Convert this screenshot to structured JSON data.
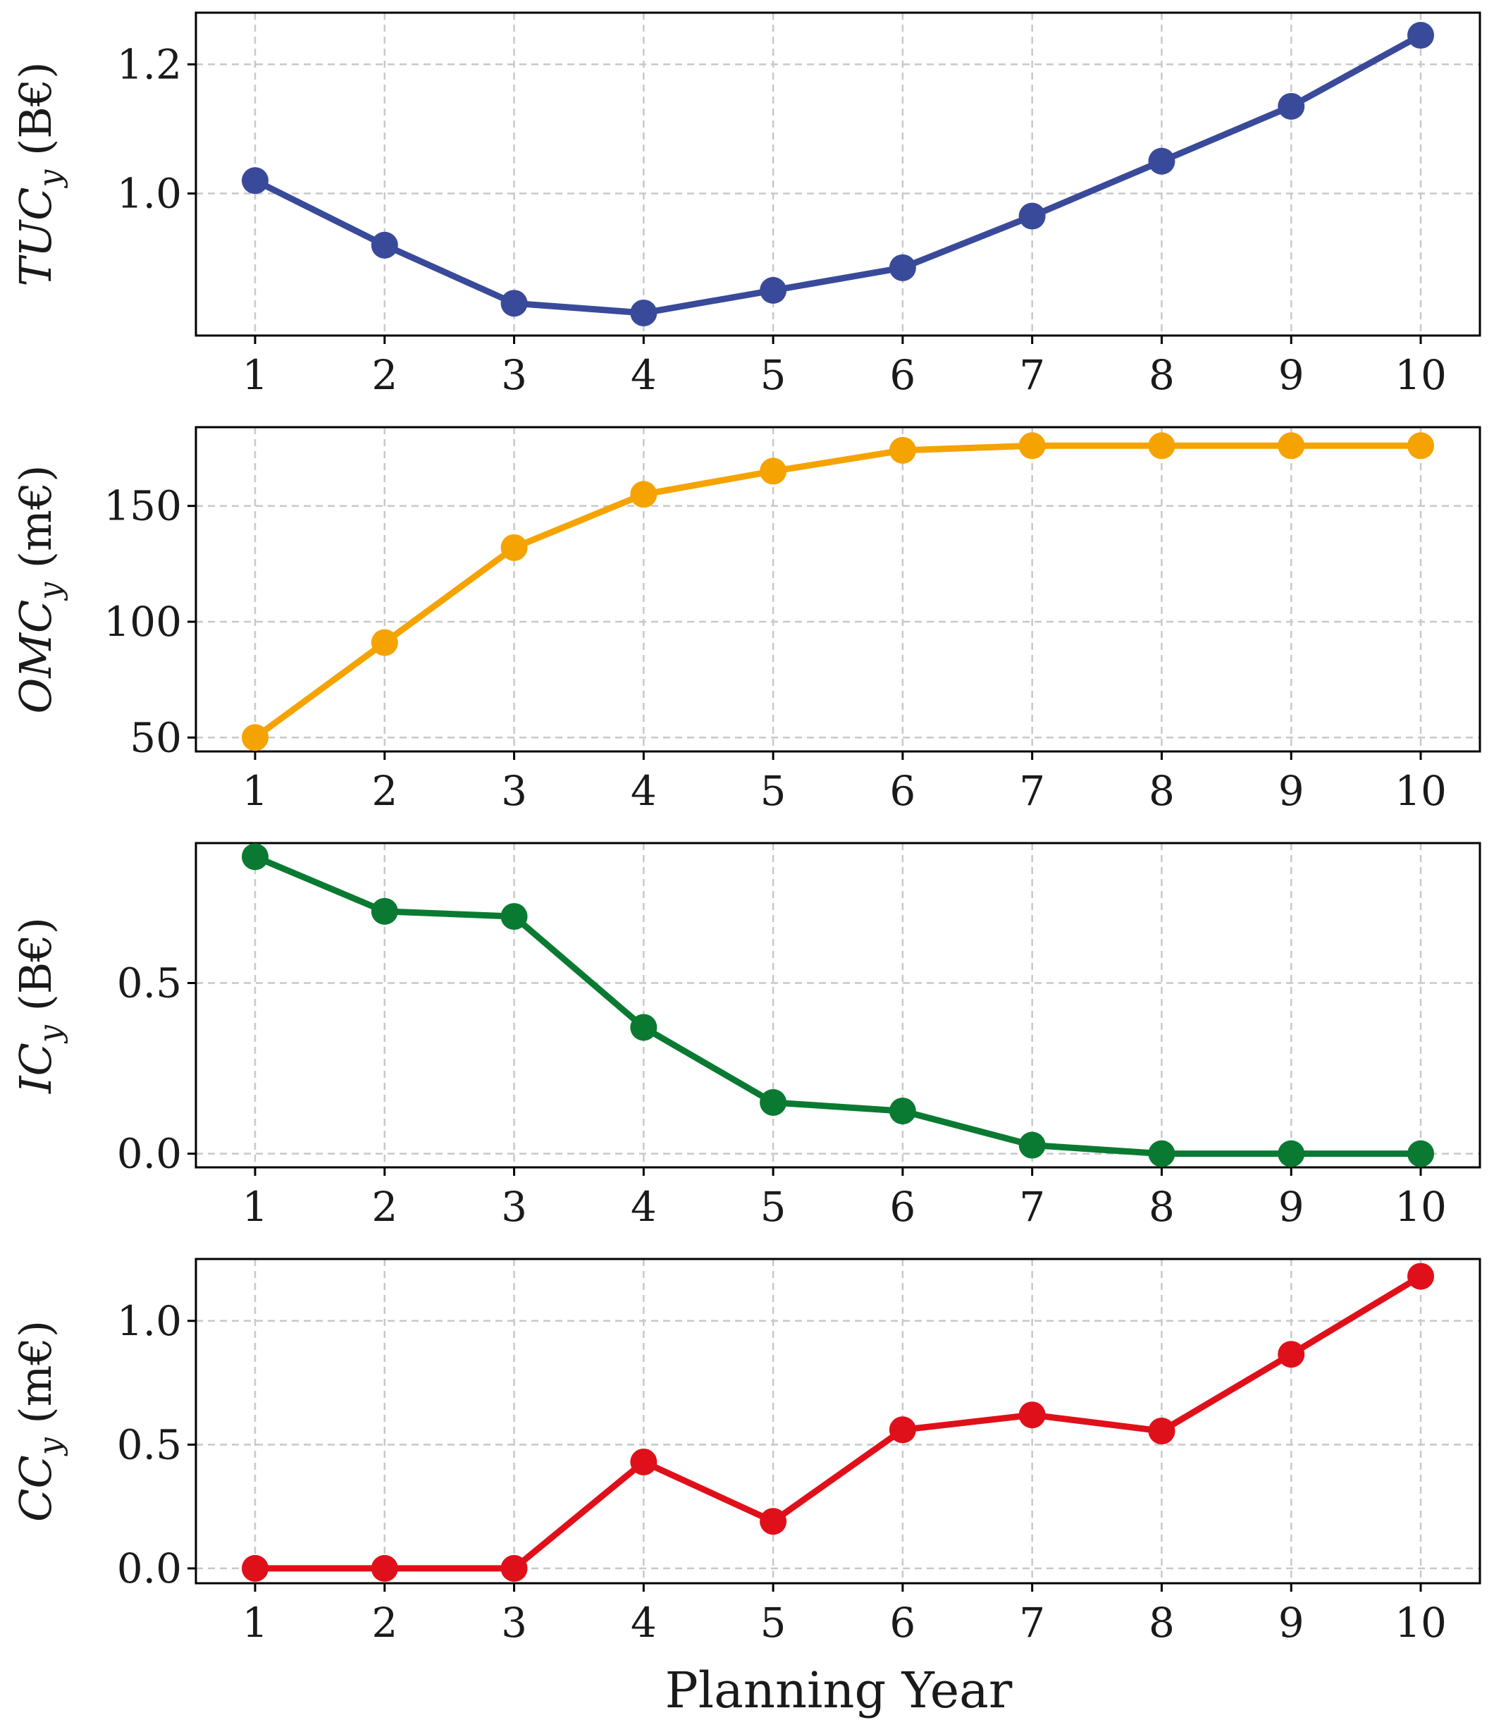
{
  "figure": {
    "xlabel": "Planning Year"
  },
  "chart_data": [
    {
      "type": "line",
      "ylabel_main": "TUC",
      "ylabel_sub": "y",
      "ylabel_unit": " (B€)",
      "color": "#3a4a9a",
      "x": [
        1,
        2,
        3,
        4,
        5,
        6,
        7,
        8,
        9,
        10
      ],
      "values": [
        1.02,
        0.92,
        0.83,
        0.815,
        0.85,
        0.885,
        0.965,
        1.05,
        1.135,
        1.245
      ],
      "ylim": [
        0.78,
        1.28
      ],
      "yticks": [
        1.0,
        1.2
      ],
      "ytick_labels": [
        "1.0",
        "1.2"
      ],
      "xtick_labels": [
        "1",
        "2",
        "3",
        "4",
        "5",
        "6",
        "7",
        "8",
        "9",
        "10"
      ],
      "grid": true
    },
    {
      "type": "line",
      "ylabel_main": "OMC",
      "ylabel_sub": "y",
      "ylabel_unit": " (m€)",
      "color": "#f5a300",
      "x": [
        1,
        2,
        3,
        4,
        5,
        6,
        7,
        8,
        9,
        10
      ],
      "values": [
        50,
        91,
        132,
        155,
        165,
        174,
        176,
        176,
        176,
        176
      ],
      "ylim": [
        44,
        184
      ],
      "yticks": [
        50,
        100,
        150
      ],
      "ytick_labels": [
        "50",
        "100",
        "150"
      ],
      "xtick_labels": [
        "1",
        "2",
        "3",
        "4",
        "5",
        "6",
        "7",
        "8",
        "9",
        "10"
      ],
      "grid": true
    },
    {
      "type": "line",
      "ylabel_main": "IC",
      "ylabel_sub": "y",
      "ylabel_unit": " (B€)",
      "color": "#0a7a32",
      "x": [
        1,
        2,
        3,
        4,
        5,
        6,
        7,
        8,
        9,
        10
      ],
      "values": [
        0.87,
        0.71,
        0.695,
        0.37,
        0.15,
        0.125,
        0.025,
        0.0,
        0.0,
        0.0
      ],
      "ylim": [
        -0.04,
        0.91
      ],
      "yticks": [
        0.0,
        0.5
      ],
      "ytick_labels": [
        "0.0",
        "0.5"
      ],
      "xtick_labels": [
        "1",
        "2",
        "3",
        "4",
        "5",
        "6",
        "7",
        "8",
        "9",
        "10"
      ],
      "grid": true
    },
    {
      "type": "line",
      "ylabel_main": "CC",
      "ylabel_sub": "y",
      "ylabel_unit": " (m€)",
      "color": "#e0101a",
      "x": [
        1,
        2,
        3,
        4,
        5,
        6,
        7,
        8,
        9,
        10
      ],
      "values": [
        0.0,
        0.0,
        0.0,
        0.43,
        0.19,
        0.56,
        0.62,
        0.555,
        0.865,
        1.18
      ],
      "ylim": [
        -0.06,
        1.25
      ],
      "yticks": [
        0.0,
        0.5,
        1.0
      ],
      "ytick_labels": [
        "0.0",
        "0.5",
        "1.0"
      ],
      "xtick_labels": [
        "1",
        "2",
        "3",
        "4",
        "5",
        "6",
        "7",
        "8",
        "9",
        "10"
      ],
      "grid": true
    }
  ]
}
